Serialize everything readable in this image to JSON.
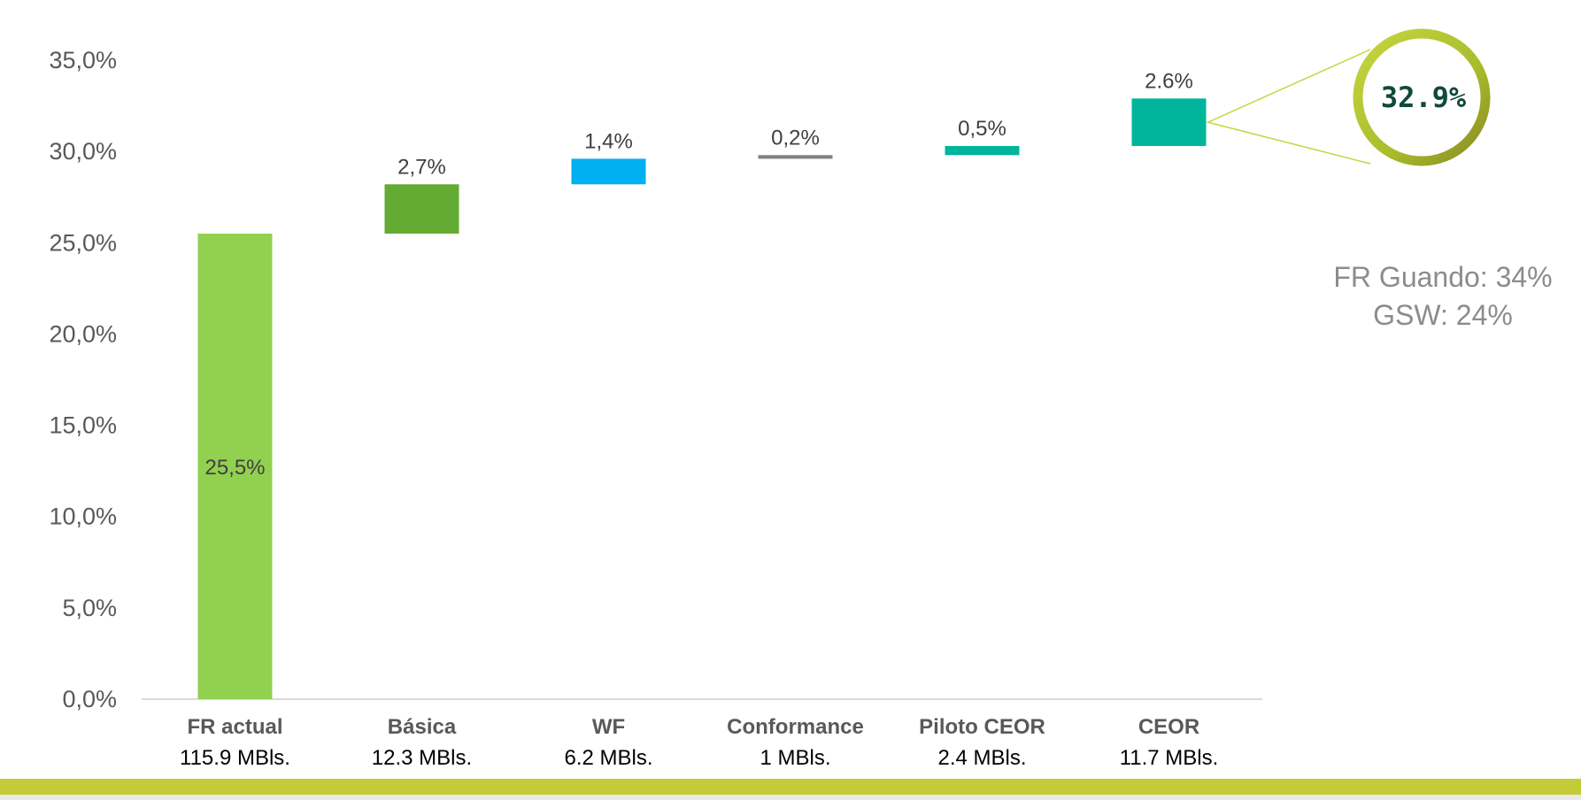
{
  "chart_data": {
    "type": "bar",
    "subtype": "waterfall",
    "categories": [
      "FR actual",
      "Básica",
      "WF",
      "Conformance",
      "Piloto CEOR",
      "CEOR"
    ],
    "category_sublabels": [
      "115.9 MBls.",
      "12.3 MBls.",
      "6.2 MBls.",
      "1 MBls.",
      "2.4 MBls.",
      "11.7 MBls."
    ],
    "values": [
      25.5,
      2.7,
      1.4,
      0.2,
      0.5,
      2.6
    ],
    "value_labels": [
      "25,5%",
      "2,7%",
      "1,4%",
      "0,2%",
      "0,5%",
      "2.6%"
    ],
    "colors": [
      "#92d050",
      "#63ab32",
      "#00b0f0",
      "#808080",
      "#00b59b",
      "#00b59b"
    ],
    "ylim": [
      0,
      35
    ],
    "yticks": [
      0,
      5,
      10,
      15,
      20,
      25,
      30,
      35
    ],
    "ytick_labels": [
      "0,0%",
      "5,0%",
      "10,0%",
      "15,0%",
      "20,0%",
      "25,0%",
      "30,0%",
      "35,0%"
    ],
    "grid": false,
    "total_callout": "32.9%"
  },
  "side_note": {
    "line1": "FR Guando: 34%",
    "line2": "GSW: 24%"
  },
  "colors": {
    "ring_accent": "#a4b82b",
    "footer_bar": "#c3cc38",
    "axis": "#d9d9d9"
  }
}
